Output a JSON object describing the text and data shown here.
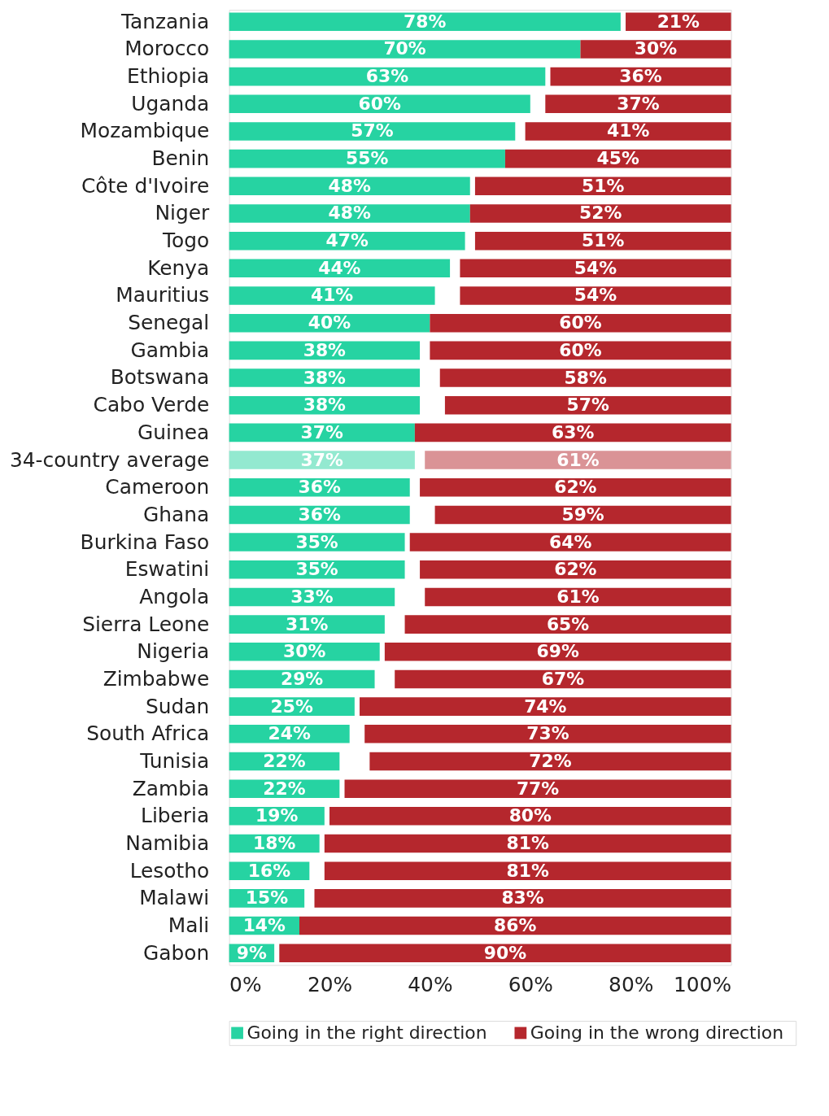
{
  "chart_data": {
    "type": "bar",
    "orientation": "horizontal",
    "categories": [
      "Tanzania",
      "Morocco",
      "Ethiopia",
      "Uganda",
      "Mozambique",
      "Benin",
      "Côte d'Ivoire",
      "Niger",
      "Togo",
      "Kenya",
      "Mauritius",
      "Senegal",
      "Gambia",
      "Botswana",
      "Cabo Verde",
      "Guinea",
      "34-country average",
      "Cameroon",
      "Ghana",
      "Burkina Faso",
      "Eswatini",
      "Angola",
      "Sierra Leone",
      "Nigeria",
      "Zimbabwe",
      "Sudan",
      "South Africa",
      "Tunisia",
      "Zambia",
      "Liberia",
      "Namibia",
      "Lesotho",
      "Malawi",
      "Mali",
      "Gabon"
    ],
    "series": [
      {
        "name": "Going in the right direction",
        "color": "#26d3a2",
        "colors": [
          "#26d3a2",
          "#26d3a2",
          "#26d3a2",
          "#26d3a2",
          "#26d3a2",
          "#26d3a2",
          "#26d3a2",
          "#26d3a2",
          "#26d3a2",
          "#26d3a2",
          "#26d3a2",
          "#26d3a2",
          "#26d3a2",
          "#26d3a2",
          "#26d3a2",
          "#26d3a2",
          "#93e9d0",
          "#26d3a2",
          "#26d3a2",
          "#26d3a2",
          "#26d3a2",
          "#26d3a2",
          "#26d3a2",
          "#26d3a2",
          "#26d3a2",
          "#26d3a2",
          "#26d3a2",
          "#26d3a2",
          "#26d3a2",
          "#26d3a2",
          "#26d3a2",
          "#26d3a2",
          "#26d3a2",
          "#26d3a2",
          "#26d3a2"
        ],
        "base": [
          0,
          0,
          0,
          0,
          0,
          0,
          0,
          0,
          0,
          0,
          0,
          0,
          0,
          0,
          0,
          0,
          0,
          0,
          0,
          0,
          0,
          0,
          0,
          0,
          0,
          0,
          0,
          0,
          0,
          0,
          0,
          0,
          0,
          0,
          0
        ],
        "values": [
          78,
          70,
          63,
          60,
          57,
          55,
          48,
          48,
          47,
          44,
          41,
          40,
          38,
          38,
          38,
          37,
          37,
          36,
          36,
          35,
          35,
          33,
          31,
          30,
          29,
          25,
          24,
          22,
          22,
          19,
          18,
          16,
          15,
          14,
          9
        ],
        "value_labels": [
          "78%",
          "70%",
          "63%",
          "60%",
          "57%",
          "55%",
          "48%",
          "48%",
          "47%",
          "44%",
          "41%",
          "40%",
          "38%",
          "38%",
          "38%",
          "37%",
          "37%",
          "36%",
          "36%",
          "35%",
          "35%",
          "33%",
          "31%",
          "30%",
          "29%",
          "25%",
          "24%",
          "22%",
          "22%",
          "19%",
          "18%",
          "16%",
          "15%",
          "14%",
          "9%"
        ]
      },
      {
        "name": "Going in the wrong direction",
        "color": "#b5272d",
        "colors": [
          "#b5272d",
          "#b5272d",
          "#b5272d",
          "#b5272d",
          "#b5272d",
          "#b5272d",
          "#b5272d",
          "#b5272d",
          "#b5272d",
          "#b5272d",
          "#b5272d",
          "#b5272d",
          "#b5272d",
          "#b5272d",
          "#b5272d",
          "#b5272d",
          "#da9396",
          "#b5272d",
          "#b5272d",
          "#b5272d",
          "#b5272d",
          "#b5272d",
          "#b5272d",
          "#b5272d",
          "#b5272d",
          "#b5272d",
          "#b5272d",
          "#b5272d",
          "#b5272d",
          "#b5272d",
          "#b5272d",
          "#b5272d",
          "#b5272d",
          "#b5272d",
          "#b5272d"
        ],
        "base": [
          79,
          70,
          64,
          63,
          59,
          55,
          49,
          48,
          49,
          46,
          46,
          40,
          40,
          42,
          43,
          37,
          39,
          38,
          41,
          36,
          38,
          39,
          35,
          31,
          33,
          26,
          27,
          28,
          23,
          20,
          19,
          19,
          17,
          14,
          10
        ],
        "values": [
          21,
          30,
          36,
          37,
          41,
          45,
          51,
          52,
          51,
          54,
          54,
          60,
          60,
          58,
          57,
          63,
          61,
          62,
          59,
          64,
          62,
          61,
          65,
          69,
          67,
          74,
          73,
          72,
          77,
          80,
          81,
          81,
          83,
          86,
          90
        ],
        "value_labels": [
          "21%",
          "30%",
          "36%",
          "37%",
          "41%",
          "45%",
          "51%",
          "52%",
          "51%",
          "54%",
          "54%",
          "60%",
          "60%",
          "58%",
          "57%",
          "63%",
          "61%",
          "62%",
          "59%",
          "64%",
          "62%",
          "61%",
          "65%",
          "69%",
          "67%",
          "74%",
          "73%",
          "72%",
          "77%",
          "80%",
          "81%",
          "81%",
          "83%",
          "86%",
          "90%"
        ]
      }
    ],
    "xlim": [
      0,
      100
    ],
    "xticks": [
      {
        "value": 0,
        "label": "0%"
      },
      {
        "value": 20,
        "label": "20%"
      },
      {
        "value": 40,
        "label": "40%"
      },
      {
        "value": 60,
        "label": "60%"
      },
      {
        "value": 80,
        "label": "80%"
      },
      {
        "value": 100,
        "label": "100%"
      }
    ],
    "legend": "bottom",
    "grid": false
  }
}
